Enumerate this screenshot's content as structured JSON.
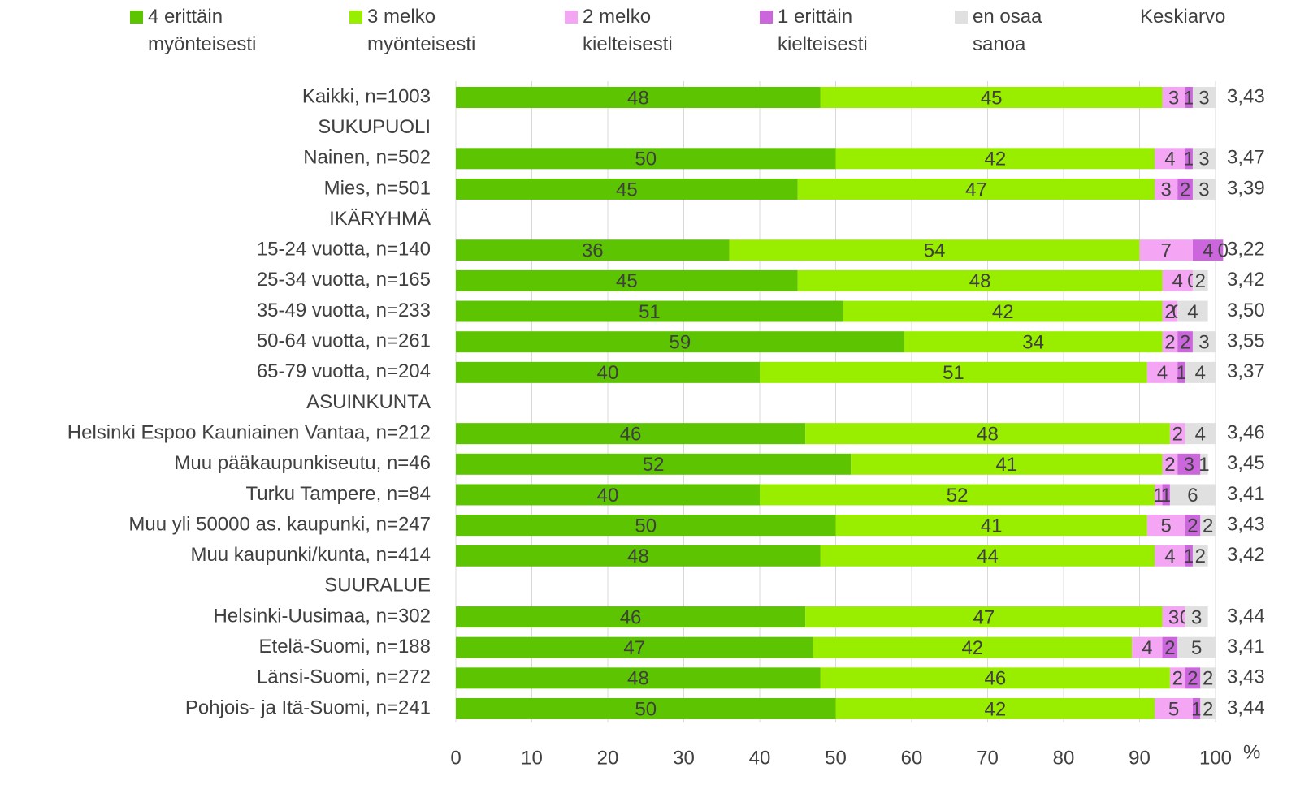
{
  "chart_data": {
    "type": "stacked-bar-horizontal",
    "categories": [
      "Kaikki, n=1003",
      "SUKUPUOLI",
      "Nainen, n=502",
      "Mies, n=501",
      "IKÄRYHMÄ",
      "15-24 vuotta, n=140",
      "25-34 vuotta, n=165",
      "35-49 vuotta, n=233",
      "50-64 vuotta, n=261",
      "65-79 vuotta, n=204",
      "ASUINKUNTA",
      "Helsinki Espoo Kauniainen Vantaa, n=212",
      "Muu pääkaupunkiseutu, n=46",
      "Turku Tampere, n=84",
      "Muu yli 50000 as. kaupunki, n=247",
      "Muu kaupunki/kunta, n=414",
      "SUURALUE",
      "Helsinki-Uusimaa, n=302",
      "Etelä-Suomi, n=188",
      "Länsi-Suomi, n=272",
      "Pohjois- ja Itä-Suomi, n=241"
    ],
    "series": [
      {
        "name": "4 erittäin myönteisesti",
        "color": "#5cc400",
        "values": [
          48,
          null,
          50,
          45,
          null,
          36,
          45,
          51,
          59,
          40,
          null,
          46,
          52,
          40,
          50,
          48,
          null,
          46,
          47,
          48,
          50
        ]
      },
      {
        "name": "3 melko myönteisesti",
        "color": "#99ee00",
        "values": [
          45,
          null,
          42,
          47,
          null,
          54,
          48,
          42,
          34,
          51,
          null,
          48,
          41,
          52,
          41,
          44,
          null,
          47,
          42,
          46,
          42
        ]
      },
      {
        "name": "2 melko kielteisesti",
        "color": "#f4a6f4",
        "values": [
          3,
          null,
          4,
          3,
          null,
          7,
          4,
          2,
          2,
          4,
          null,
          2,
          2,
          1,
          5,
          4,
          null,
          3,
          4,
          2,
          5
        ]
      },
      {
        "name": "1 erittäin kielteisesti",
        "color": "#cc66dd",
        "values": [
          1,
          null,
          1,
          2,
          null,
          4,
          0,
          0,
          2,
          1,
          null,
          null,
          3,
          1,
          2,
          1,
          null,
          0,
          2,
          2,
          1
        ]
      },
      {
        "name": "en osaa sanoa",
        "color": "#e0e0e0",
        "values": [
          3,
          null,
          3,
          3,
          null,
          0,
          2,
          4,
          3,
          4,
          null,
          4,
          1,
          6,
          2,
          2,
          null,
          3,
          5,
          2,
          2
        ]
      }
    ],
    "mean": {
      "name": "Keskiarvo",
      "values": [
        3.43,
        null,
        3.47,
        3.39,
        null,
        3.22,
        3.42,
        3.5,
        3.55,
        3.37,
        null,
        3.46,
        3.45,
        3.41,
        3.43,
        3.42,
        null,
        3.44,
        3.41,
        3.43,
        3.44
      ],
      "value_labels": [
        "3,43",
        null,
        "3,47",
        "3,39",
        null,
        "3,22",
        "3,42",
        "3,50",
        "3,55",
        "3,37",
        null,
        "3,46",
        "3,45",
        "3,41",
        "3,43",
        "3,42",
        null,
        "3,44",
        "3,41",
        "3,43",
        "3,44"
      ]
    },
    "xlim": [
      0,
      100
    ],
    "xticks": [
      0,
      10,
      20,
      30,
      40,
      50,
      60,
      70,
      80,
      90,
      100
    ],
    "x_label": "%",
    "grid": true
  }
}
